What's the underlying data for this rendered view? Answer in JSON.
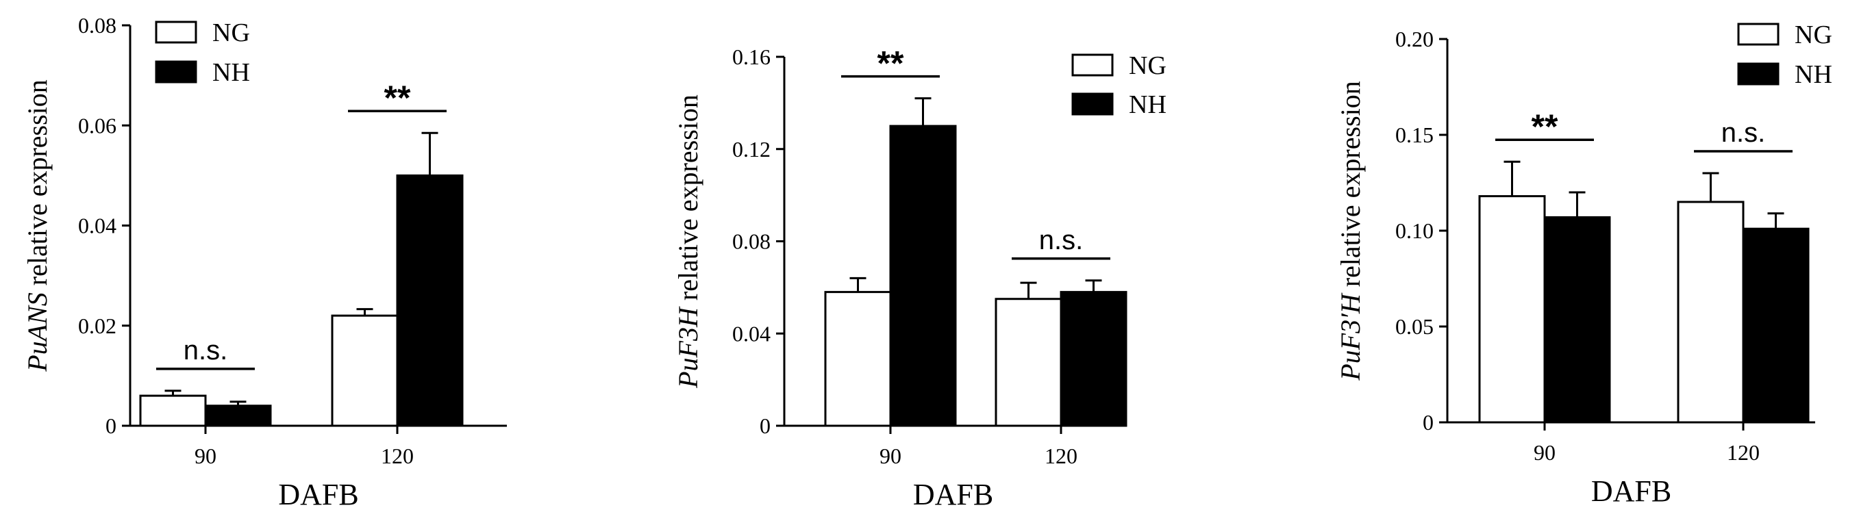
{
  "chart_data": [
    {
      "type": "bar",
      "xlabel": "DAFB",
      "ylabel_gene": "PuANS",
      "ylabel_suffix": " relative expression",
      "categories": [
        "90",
        "120"
      ],
      "ylim": [
        0,
        0.08
      ],
      "yticks": [
        "0",
        "0.02",
        "0.04",
        "0.06",
        "0.08"
      ],
      "yticks_values": [
        0,
        0.02,
        0.04,
        0.06,
        0.08
      ],
      "legend": "top-left",
      "series": [
        {
          "name": "NG",
          "values": [
            0.006,
            0.022
          ],
          "errors": [
            0.001,
            0.0013
          ],
          "fill": "#ffffff"
        },
        {
          "name": "NH",
          "values": [
            0.004,
            0.05
          ],
          "errors": [
            0.0008,
            0.0085
          ],
          "fill": "#000000"
        }
      ],
      "significance": [
        "n.s.",
        "**"
      ]
    },
    {
      "type": "bar",
      "xlabel": "DAFB",
      "ylabel_gene": "PuF3H",
      "ylabel_suffix": " relative expression",
      "categories": [
        "90",
        "120"
      ],
      "ylim": [
        0,
        0.16
      ],
      "yticks": [
        "0",
        "0.04",
        "0.08",
        "0.12",
        "0.16"
      ],
      "yticks_values": [
        0,
        0.04,
        0.08,
        0.12,
        0.16
      ],
      "legend": "top-right",
      "series": [
        {
          "name": "NG",
          "values": [
            0.058,
            0.055
          ],
          "errors": [
            0.006,
            0.007
          ],
          "fill": "#ffffff"
        },
        {
          "name": "NH",
          "values": [
            0.13,
            0.058
          ],
          "errors": [
            0.012,
            0.005
          ],
          "fill": "#000000"
        }
      ],
      "significance": [
        "**",
        "n.s."
      ]
    },
    {
      "type": "bar",
      "xlabel": "DAFB",
      "ylabel_gene": "PuF3′H",
      "ylabel_suffix": " relative expression",
      "categories": [
        "90",
        "120"
      ],
      "ylim": [
        0,
        0.2
      ],
      "yticks": [
        "0",
        "0.05",
        "0.10",
        "0.15",
        "0.20"
      ],
      "yticks_values": [
        0,
        0.05,
        0.1,
        0.15,
        0.2
      ],
      "legend": "top-right",
      "series": [
        {
          "name": "NG",
          "values": [
            0.118,
            0.115
          ],
          "errors": [
            0.018,
            0.015
          ],
          "fill": "#ffffff"
        },
        {
          "name": "NH",
          "values": [
            0.107,
            0.101
          ],
          "errors": [
            0.013,
            0.008
          ],
          "fill": "#000000"
        }
      ],
      "significance": [
        "**",
        "n.s."
      ]
    }
  ]
}
